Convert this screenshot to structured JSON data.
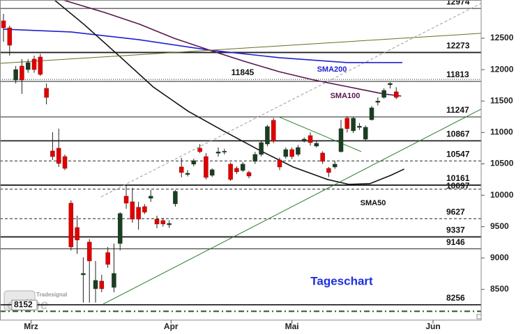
{
  "chart_data": {
    "type": "candlestick",
    "title": "Tageschart",
    "up_color": "#1b3d22",
    "down_color": "#e00000",
    "xlim": [
      -0.57,
      77.84
    ],
    "xticks": [
      {
        "value": 4.5,
        "label": "Mrz"
      },
      {
        "value": 27.3,
        "label": "Apr"
      },
      {
        "value": 47,
        "label": "Mai"
      },
      {
        "value": 70,
        "label": "Jun"
      }
    ],
    "ylim": [
      8012,
      13109
    ],
    "yticks": [
      8500,
      9000,
      9500,
      10000,
      10500,
      11000,
      11500,
      12000,
      12500
    ],
    "open": [
      12777,
      12666,
      11835,
      12057,
      12001,
      12168,
      12201,
      11702,
      10705,
      10749,
      10616,
      9874,
      9486,
      8733,
      9254,
      8511,
      8633,
      9087,
      8533,
      9231,
      9985,
      9896,
      9808,
      9819,
      9952,
      9619,
      9597,
      9530,
      9863,
      10450,
      10330,
      10495,
      10749,
      10616,
      10317,
      10670,
      10690,
      10495,
      10428,
      10395,
      10362,
      10539,
      10650,
      10816,
      11193,
      10561,
      10616,
      10727,
      10650,
      10860,
      10949,
      10783,
      10672,
      10428,
      10450,
      10694,
      11226,
      11026,
      11080,
      10893,
      11203,
      11480,
      11558,
      11760,
      11647
    ],
    "high": [
      12888,
      12700,
      12057,
      12168,
      12168,
      12223,
      12250,
      11780,
      11004,
      11060,
      10650,
      9918,
      9675,
      9010,
      9300,
      8954,
      8733,
      9176,
      9231,
      9730,
      10173,
      10118,
      9896,
      9860,
      10085,
      9675,
      9640,
      9600,
      10085,
      10594,
      10400,
      10580,
      10816,
      10672,
      10430,
      10760,
      10740,
      10520,
      10460,
      10530,
      10390,
      10690,
      10870,
      11120,
      11230,
      10600,
      10760,
      10760,
      10800,
      10920,
      11000,
      10860,
      10700,
      10450,
      10550,
      11200,
      11260,
      11250,
      11150,
      11110,
      11420,
      11560,
      11700,
      11800,
      11720
    ],
    "low": [
      12445,
      12223,
      11780,
      11614,
      11950,
      11950,
      11900,
      11447,
      10561,
      10450,
      10400,
      9121,
      9065,
      8290,
      8290,
      8290,
      8456,
      8844,
      8456,
      9121,
      9785,
      9564,
      9453,
      9700,
      9896,
      9475,
      9500,
      9480,
      9819,
      10284,
      10300,
      10460,
      10672,
      10251,
      10290,
      10616,
      10650,
      10230,
      10340,
      10370,
      10270,
      10500,
      10620,
      10780,
      10830,
      10400,
      10580,
      10580,
      10620,
      10840,
      10790,
      10760,
      10500,
      10290,
      10420,
      10680,
      11000,
      10990,
      11040,
      10860,
      11190,
      11430,
      11540,
      11700,
      11530
    ],
    "close": [
      12666,
      12389,
      12001,
      11835,
      12112,
      12001,
      11924,
      11558,
      10616,
      10506,
      10428,
      9176,
      9287,
      8755,
      8954,
      8644,
      8511,
      8899,
      8755,
      9708,
      9874,
      9619,
      9619,
      9730,
      9985,
      9542,
      9542,
      9550,
      10062,
      10362,
      10350,
      10550,
      10694,
      10284,
      10406,
      10690,
      10700,
      10251,
      10373,
      10495,
      10306,
      10650,
      10838,
      11093,
      10860,
      10450,
      10727,
      10616,
      10760,
      10893,
      10838,
      10827,
      10539,
      10362,
      10495,
      11060,
      11060,
      11226,
      11100,
      11082,
      11392,
      11500,
      11669,
      11780,
      11558
    ],
    "levels": [
      {
        "value": 12974,
        "style": "solid"
      },
      {
        "value": 12273,
        "style": "thick"
      },
      {
        "value": 11845,
        "style": "dotted"
      },
      {
        "value": 11813,
        "style": "solid"
      },
      {
        "value": 11247,
        "style": "solid"
      },
      {
        "value": 10867,
        "style": "thick"
      },
      {
        "value": 10547,
        "style": "dashed"
      },
      {
        "value": 10161,
        "style": "thick"
      },
      {
        "value": 10097,
        "style": "dashed"
      },
      {
        "value": 9627,
        "style": "dashed"
      },
      {
        "value": 9337,
        "style": "thick"
      },
      {
        "value": 9146,
        "style": "solid"
      },
      {
        "value": 8256,
        "style": "thick"
      },
      {
        "value": 8152,
        "style": "dashdot"
      }
    ],
    "lines": [
      {
        "name": "SMA200",
        "color": "#2020d0",
        "x": [
          0,
          11,
          22,
          33.5,
          45,
          56,
          65
        ],
        "values": [
          12644,
          12600,
          12478,
          12312,
          12190,
          12112,
          12112
        ]
      },
      {
        "name": "SMA100",
        "color": "#5a1450",
        "x": [
          9.7,
          16.5,
          22.2,
          27.8,
          33.5,
          39.2,
          44.9,
          50.6,
          56.3,
          61.9,
          64.8
        ],
        "values": [
          13109,
          12910,
          12722,
          12500,
          12312,
          12134,
          11968,
          11835,
          11724,
          11614,
          11580
        ]
      },
      {
        "name": "SMA50",
        "color": "#111111",
        "x": [
          8.3,
          13.1,
          18.8,
          24.4,
          30.1,
          35.8,
          41.5,
          47.2,
          52.8,
          56.3,
          59.7,
          63.1,
          65.3
        ],
        "values": [
          13109,
          12722,
          12223,
          11724,
          11337,
          11026,
          10727,
          10450,
          10251,
          10173,
          10184,
          10317,
          10417
        ]
      },
      {
        "color": "#6b6b20",
        "x": [
          -0.5,
          77.8
        ],
        "values": [
          12101,
          12578
        ]
      },
      {
        "color": "#2a7a2a",
        "x": [
          16.25,
          77.8
        ],
        "values": [
          8267,
          11370
        ]
      },
      {
        "color": "#9a9a9a",
        "style": "dashed",
        "x": [
          15.9,
          77.8
        ],
        "values": [
          9974,
          13054
        ]
      },
      {
        "color": "#2a7a2a",
        "x": [
          44.9,
          58.3
        ],
        "values": [
          11247,
          10694
        ]
      }
    ],
    "logo": {
      "small": "Tradesignal",
      "big": "online"
    }
  }
}
